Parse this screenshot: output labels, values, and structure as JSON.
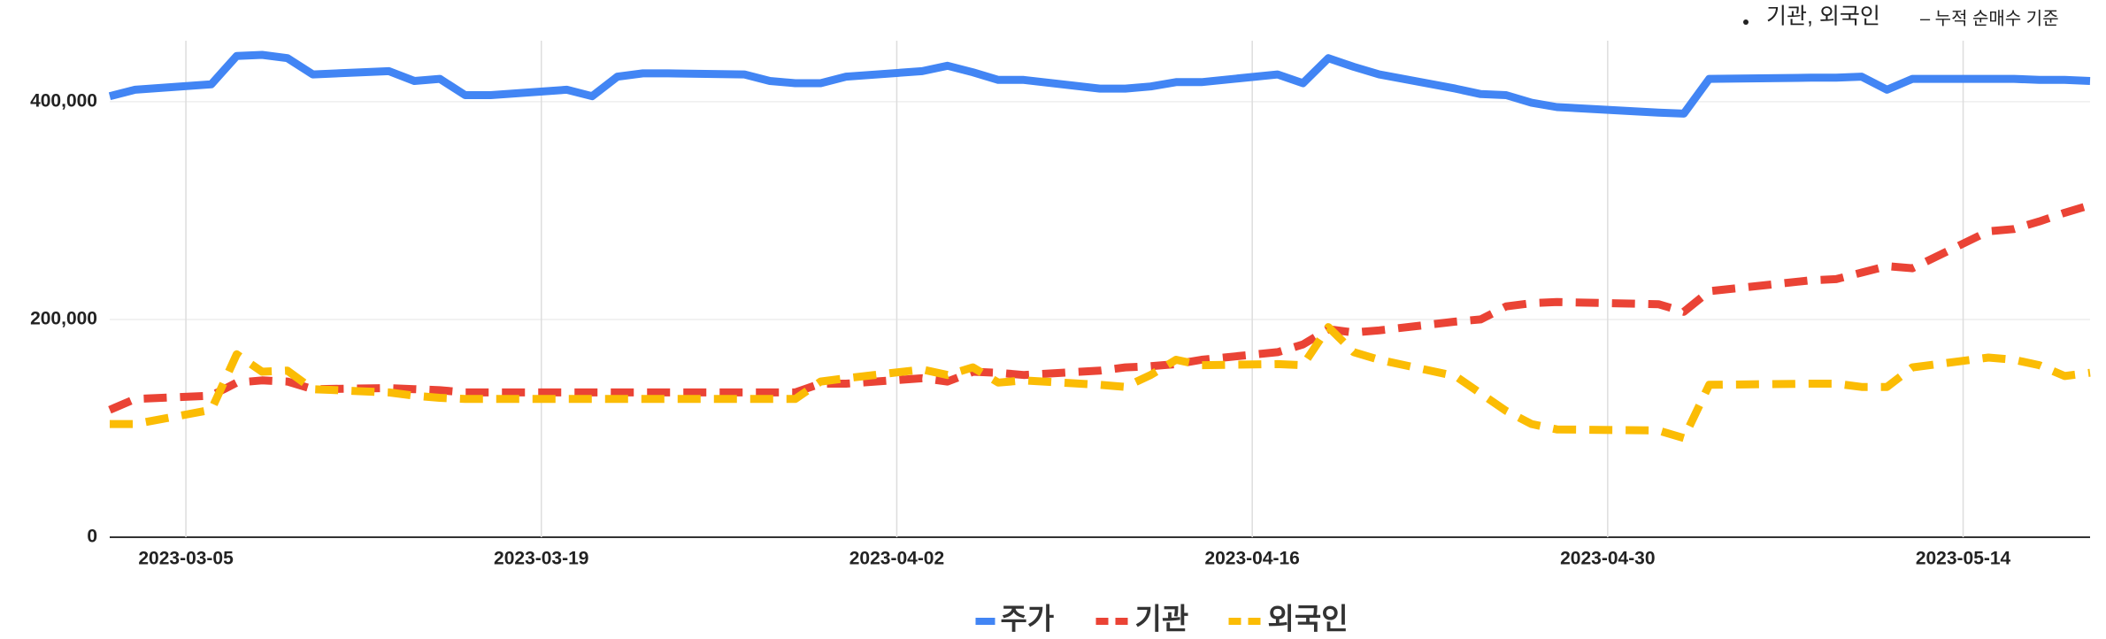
{
  "chart_data": {
    "type": "line",
    "annotations": [
      "기관, 외국인",
      "– 누적 순매수 기준"
    ],
    "x": [
      "2023-03-02",
      "2023-03-03",
      "2023-03-06",
      "2023-03-07",
      "2023-03-08",
      "2023-03-09",
      "2023-03-10",
      "2023-03-13",
      "2023-03-14",
      "2023-03-15",
      "2023-03-16",
      "2023-03-17",
      "2023-03-20",
      "2023-03-21",
      "2023-03-22",
      "2023-03-23",
      "2023-03-24",
      "2023-03-27",
      "2023-03-28",
      "2023-03-29",
      "2023-03-30",
      "2023-03-31",
      "2023-04-03",
      "2023-04-04",
      "2023-04-05",
      "2023-04-06",
      "2023-04-07",
      "2023-04-10",
      "2023-04-11",
      "2023-04-12",
      "2023-04-13",
      "2023-04-14",
      "2023-04-17",
      "2023-04-18",
      "2023-04-19",
      "2023-04-20",
      "2023-04-21",
      "2023-04-24",
      "2023-04-25",
      "2023-04-26",
      "2023-04-27",
      "2023-04-28",
      "2023-05-02",
      "2023-05-03",
      "2023-05-04",
      "2023-05-08",
      "2023-05-09",
      "2023-05-10",
      "2023-05-11",
      "2023-05-12",
      "2023-05-15",
      "2023-05-16",
      "2023-05-17",
      "2023-05-18",
      "2023-05-19"
    ],
    "series": [
      {
        "name": "주가",
        "color": "#4285f4",
        "dashed": false,
        "values": [
          405000,
          411000,
          416000,
          442000,
          443000,
          440000,
          425000,
          428000,
          419000,
          421000,
          406000,
          406000,
          411000,
          405000,
          423000,
          426000,
          426000,
          425000,
          419000,
          417000,
          417000,
          423000,
          428000,
          433000,
          427000,
          420000,
          420000,
          412000,
          412000,
          414000,
          418000,
          418000,
          425000,
          417000,
          440000,
          432000,
          425000,
          412000,
          407000,
          406000,
          399000,
          395000,
          390000,
          389000,
          421000,
          422000,
          422000,
          423000,
          411000,
          421000,
          421000,
          421000,
          420000,
          420000,
          419000
        ]
      },
      {
        "name": "기관",
        "color": "#ea4335",
        "dashed": true,
        "values": [
          117000,
          127000,
          130000,
          142000,
          144000,
          143000,
          136000,
          137000,
          136000,
          135000,
          133000,
          133000,
          133000,
          133000,
          133000,
          133000,
          133000,
          133000,
          133000,
          133000,
          141000,
          141000,
          146000,
          143000,
          152000,
          151000,
          149000,
          153000,
          156000,
          157000,
          159000,
          163000,
          170000,
          177000,
          191000,
          188000,
          190000,
          198000,
          200000,
          212000,
          215000,
          216000,
          214000,
          207000,
          226000,
          236000,
          237000,
          243000,
          249000,
          247000,
          281000,
          283000,
          290000,
          298000,
          305000
        ]
      },
      {
        "name": "외국인",
        "color": "#fbbc04",
        "dashed": true,
        "values": [
          104000,
          104000,
          117000,
          168000,
          152000,
          153000,
          136000,
          133000,
          130000,
          128000,
          127000,
          127000,
          127000,
          127000,
          127000,
          127000,
          127000,
          127000,
          127000,
          127000,
          143000,
          146000,
          154000,
          149000,
          156000,
          142000,
          144000,
          140000,
          138000,
          149000,
          163000,
          158000,
          159000,
          158000,
          193000,
          170000,
          163000,
          148000,
          132000,
          116000,
          104000,
          99000,
          98000,
          91000,
          140000,
          141000,
          141000,
          138000,
          138000,
          156000,
          165000,
          163000,
          158000,
          148000,
          151000
        ]
      }
    ],
    "xlim": [
      "2023-03-02",
      "2023-05-19"
    ],
    "xticks": [
      "2023-03-05",
      "2023-03-19",
      "2023-04-02",
      "2023-04-16",
      "2023-04-30",
      "2023-05-14"
    ],
    "ylim": [
      0,
      456000
    ],
    "yticks": [
      0,
      {
        "value": 200000,
        "label": "200,000"
      },
      {
        "value": 400000,
        "label": "400,000"
      }
    ],
    "grid": true,
    "legend": "bottom"
  }
}
